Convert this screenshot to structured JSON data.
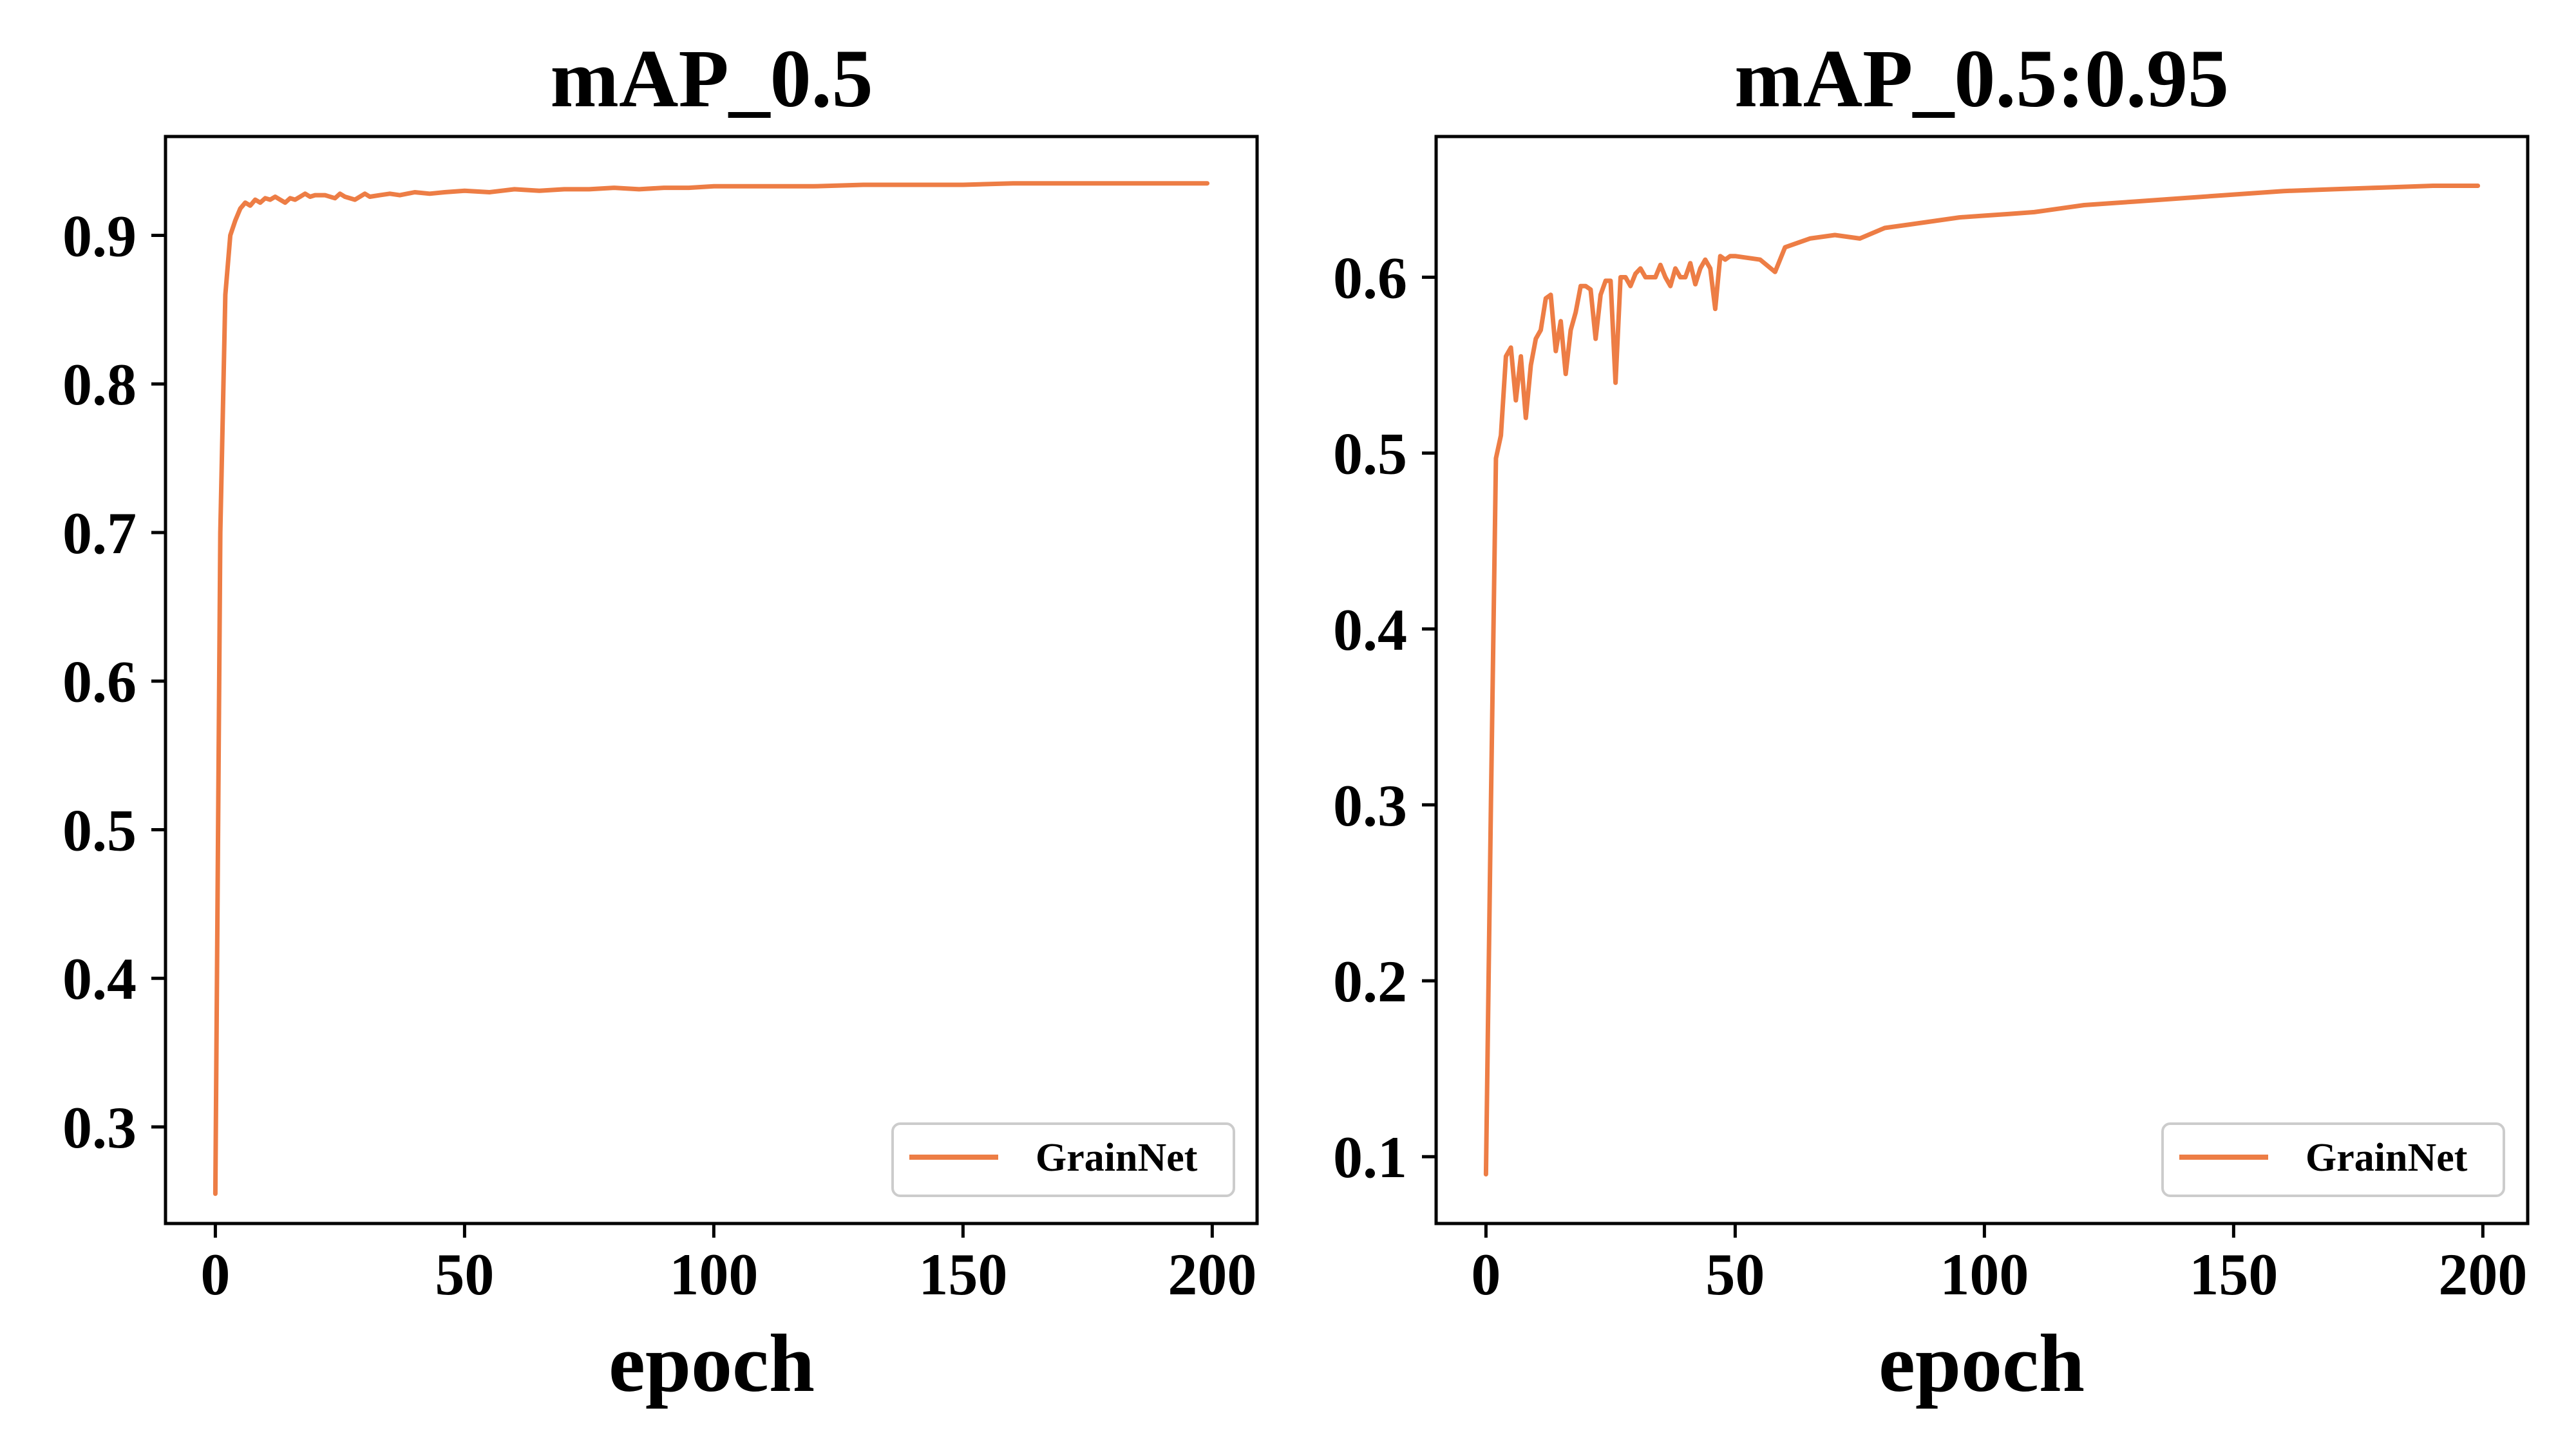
{
  "chart_data": [
    {
      "type": "line",
      "title": "mAP_0.5",
      "xlabel": "epoch",
      "ylabel": "",
      "xlim": [
        -10,
        209
      ],
      "ylim": [
        0.235,
        0.9665
      ],
      "xticks": [
        0,
        50,
        100,
        150,
        200
      ],
      "yticks": [
        0.3,
        0.4,
        0.5,
        0.6,
        0.7,
        0.8,
        0.9
      ],
      "xtick_labels": [
        "0",
        "50",
        "100",
        "150",
        "200"
      ],
      "ytick_labels": [
        "0.3",
        "0.4",
        "0.5",
        "0.6",
        "0.7",
        "0.8",
        "0.9"
      ],
      "grid": false,
      "legend": {
        "position": "lower-right",
        "entries": [
          "GrainNet"
        ]
      },
      "series": [
        {
          "name": "GrainNet",
          "color": "#ed7d45",
          "x": [
            0,
            1,
            2,
            3,
            4,
            5,
            6,
            7,
            8,
            9,
            10,
            11,
            12,
            13,
            14,
            15,
            16,
            17,
            18,
            19,
            20,
            22,
            24,
            25,
            26,
            28,
            30,
            31,
            33,
            35,
            37,
            40,
            43,
            46,
            50,
            55,
            60,
            65,
            70,
            75,
            80,
            85,
            90,
            95,
            100,
            110,
            120,
            130,
            140,
            150,
            160,
            170,
            180,
            190,
            199
          ],
          "y": [
            0.255,
            0.7,
            0.86,
            0.9,
            0.91,
            0.918,
            0.922,
            0.92,
            0.924,
            0.922,
            0.925,
            0.924,
            0.926,
            0.924,
            0.922,
            0.925,
            0.924,
            0.926,
            0.928,
            0.926,
            0.927,
            0.927,
            0.925,
            0.928,
            0.926,
            0.924,
            0.928,
            0.926,
            0.927,
            0.928,
            0.927,
            0.929,
            0.928,
            0.929,
            0.93,
            0.929,
            0.931,
            0.93,
            0.931,
            0.931,
            0.932,
            0.931,
            0.932,
            0.932,
            0.933,
            0.933,
            0.933,
            0.934,
            0.934,
            0.934,
            0.935,
            0.935,
            0.935,
            0.935,
            0.935
          ]
        }
      ]
    },
    {
      "type": "line",
      "title": "mAP_0.5:0.95",
      "xlabel": "epoch",
      "ylabel": "",
      "xlim": [
        -10,
        209
      ],
      "ylim": [
        0.062,
        0.68
      ],
      "xticks": [
        0,
        50,
        100,
        150,
        200
      ],
      "yticks": [
        0.1,
        0.2,
        0.3,
        0.4,
        0.5,
        0.6
      ],
      "xtick_labels": [
        "0",
        "50",
        "100",
        "150",
        "200"
      ],
      "ytick_labels": [
        "0.1",
        "0.2",
        "0.3",
        "0.4",
        "0.5",
        "0.6"
      ],
      "grid": false,
      "legend": {
        "position": "lower-right",
        "entries": [
          "GrainNet"
        ]
      },
      "series": [
        {
          "name": "GrainNet",
          "color": "#ed7d45",
          "x": [
            0,
            1,
            2,
            3,
            4,
            5,
            6,
            7,
            8,
            9,
            10,
            11,
            12,
            13,
            14,
            15,
            16,
            17,
            18,
            19,
            20,
            21,
            22,
            23,
            24,
            25,
            26,
            27,
            28,
            29,
            30,
            31,
            32,
            33,
            34,
            35,
            36,
            37,
            38,
            39,
            40,
            41,
            42,
            43,
            44,
            45,
            46,
            47,
            48,
            49,
            50,
            55,
            58,
            60,
            65,
            70,
            75,
            80,
            85,
            90,
            95,
            100,
            105,
            110,
            120,
            130,
            140,
            150,
            160,
            170,
            180,
            190,
            199
          ],
          "y": [
            0.09,
            0.3,
            0.497,
            0.51,
            0.555,
            0.56,
            0.53,
            0.555,
            0.52,
            0.55,
            0.565,
            0.57,
            0.588,
            0.59,
            0.558,
            0.575,
            0.545,
            0.57,
            0.58,
            0.595,
            0.595,
            0.593,
            0.565,
            0.59,
            0.598,
            0.598,
            0.54,
            0.6,
            0.6,
            0.595,
            0.602,
            0.605,
            0.6,
            0.6,
            0.6,
            0.607,
            0.6,
            0.595,
            0.605,
            0.6,
            0.6,
            0.608,
            0.596,
            0.605,
            0.61,
            0.605,
            0.582,
            0.612,
            0.61,
            0.612,
            0.612,
            0.61,
            0.603,
            0.617,
            0.622,
            0.624,
            0.622,
            0.628,
            0.63,
            0.632,
            0.634,
            0.635,
            0.636,
            0.637,
            0.641,
            0.643,
            0.645,
            0.647,
            0.649,
            0.65,
            0.651,
            0.652,
            0.652
          ]
        }
      ]
    }
  ]
}
